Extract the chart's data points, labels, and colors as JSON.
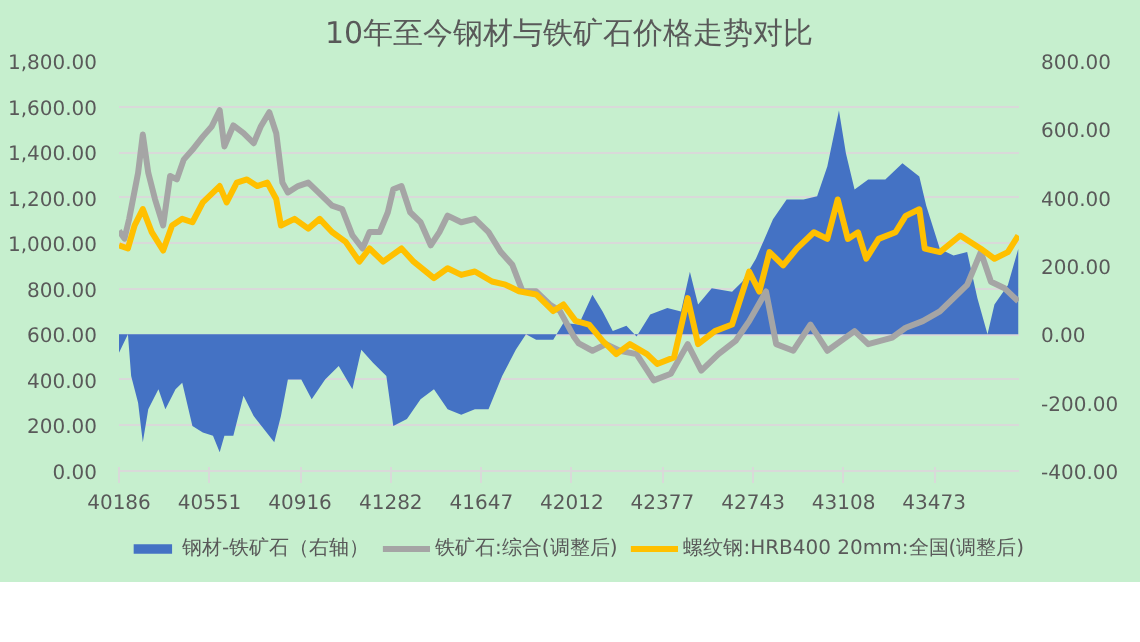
{
  "chart_data": {
    "type": "line",
    "title": "10年至今钢材与铁矿石价格走势对比",
    "xlim": [
      40186,
      43815
    ],
    "xticks": [
      40186,
      40551,
      40916,
      41282,
      41647,
      42012,
      42377,
      42743,
      43108,
      43473
    ],
    "ylim": [
      0,
      1800
    ],
    "yticks": [
      {
        "value": 0,
        "label": "0.00"
      },
      {
        "value": 200,
        "label": "200.00"
      },
      {
        "value": 400,
        "label": "400.00"
      },
      {
        "value": 600,
        "label": "600.00"
      },
      {
        "value": 800,
        "label": "800.00"
      },
      {
        "value": 1000,
        "label": "1,000.00"
      },
      {
        "value": 1200,
        "label": "1,200.00"
      },
      {
        "value": 1400,
        "label": "1,400.00"
      },
      {
        "value": 1600,
        "label": "1,600.00"
      },
      {
        "value": 1800,
        "label": "1,800.00"
      }
    ],
    "y2lim": [
      -400,
      800
    ],
    "y2ticks": [
      {
        "value": -400,
        "label": "-400.00"
      },
      {
        "value": -200,
        "label": "-200.00"
      },
      {
        "value": 0,
        "label": "0.00"
      },
      {
        "value": 200,
        "label": "200.00"
      },
      {
        "value": 400,
        "label": "400.00"
      },
      {
        "value": 600,
        "label": "600.00"
      },
      {
        "value": 800,
        "label": "800.00"
      }
    ],
    "grid": "y",
    "legend": "bottom",
    "series": [
      {
        "name": "钢材-铁矿石（右轴）",
        "type": "area",
        "axis": "y2",
        "color": "#4472c4",
        "x": [
          40186,
          40222,
          40235,
          40263,
          40282,
          40304,
          40345,
          40373,
          40414,
          40441,
          40482,
          40524,
          40565,
          40592,
          40611,
          40647,
          40688,
          40729,
          40770,
          40812,
          40839,
          40867,
          40921,
          40963,
          41017,
          41072,
          41127,
          41163,
          41210,
          41264,
          41292,
          41347,
          41402,
          41456,
          41511,
          41566,
          41621,
          41676,
          41731,
          41786,
          41827,
          41868,
          41937,
          41978,
          42040,
          42095,
          42136,
          42177,
          42232,
          42273,
          42328,
          42397,
          42452,
          42488,
          42521,
          42576,
          42658,
          42699,
          42754,
          42823,
          42878,
          42946,
          43001,
          43042,
          43089,
          43117,
          43152,
          43207,
          43276,
          43345,
          43413,
          43441,
          43496,
          43551,
          43606,
          43647,
          43688,
          43716,
          43770,
          43812
        ],
        "values": [
          -54,
          0,
          -122,
          -200,
          -316,
          -219,
          -161,
          -219,
          -161,
          -142,
          -268,
          -287,
          -297,
          -345,
          -297,
          -297,
          -180,
          -239,
          -277,
          -316,
          -239,
          -132,
          -132,
          -190,
          -132,
          -93,
          -161,
          -45,
          -83,
          -122,
          -268,
          -248,
          -190,
          -161,
          -219,
          -235,
          -219,
          -219,
          -122,
          -45,
          0,
          -16,
          -16,
          33,
          29,
          116,
          67,
          10,
          25,
          -6,
          58,
          77,
          67,
          183,
          87,
          135,
          125,
          154,
          221,
          337,
          395,
          395,
          404,
          491,
          655,
          530,
          424,
          453,
          453,
          501,
          462,
          376,
          250,
          231,
          241,
          106,
          0,
          87,
          144,
          250
        ]
      },
      {
        "name": "铁矿石:综合(调整后)",
        "color": "#a5a5a5",
        "x": [
          40186,
          40208,
          40227,
          40263,
          40282,
          40304,
          40331,
          40364,
          40392,
          40419,
          40447,
          40482,
          40524,
          40559,
          40592,
          40611,
          40647,
          40688,
          40729,
          40757,
          40792,
          40820,
          40845,
          40867,
          40908,
          40949,
          40990,
          41045,
          41086,
          41127,
          41168,
          41196,
          41237,
          41270,
          41292,
          41325,
          41360,
          41402,
          41443,
          41478,
          41511,
          41566,
          41621,
          41676,
          41725,
          41772,
          41813,
          41868,
          41923,
          41964,
          42019,
          42040,
          42095,
          42150,
          42205,
          42273,
          42342,
          42411,
          42479,
          42534,
          42603,
          42672,
          42727,
          42795,
          42836,
          42905,
          42974,
          43042,
          43152,
          43207,
          43304,
          43358,
          43427,
          43496,
          43551,
          43606,
          43661,
          43702,
          43757,
          43812
        ],
        "values": [
          1055,
          1020,
          1107,
          1309,
          1477,
          1309,
          1194,
          1078,
          1295,
          1280,
          1367,
          1410,
          1468,
          1511,
          1584,
          1425,
          1517,
          1483,
          1439,
          1511,
          1575,
          1483,
          1266,
          1223,
          1251,
          1266,
          1223,
          1165,
          1150,
          1035,
          977,
          1049,
          1049,
          1136,
          1237,
          1251,
          1136,
          1092,
          991,
          1049,
          1121,
          1092,
          1107,
          1049,
          962,
          905,
          789,
          789,
          731,
          702,
          592,
          560,
          528,
          557,
          528,
          513,
          398,
          427,
          557,
          441,
          513,
          571,
          658,
          788,
          557,
          528,
          643,
          528,
          614,
          557,
          586,
          629,
          658,
          701,
          759,
          817,
          961,
          831,
          802,
          745
        ]
      },
      {
        "name": "螺纹钢:HRB400 20mm:全国(调整后)",
        "color": "#ffc000",
        "x": [
          40186,
          40222,
          40249,
          40282,
          40318,
          40364,
          40400,
          40441,
          40482,
          40524,
          40592,
          40620,
          40661,
          40702,
          40743,
          40784,
          40820,
          40839,
          40894,
          40949,
          40995,
          41045,
          41100,
          41155,
          41196,
          41251,
          41325,
          41374,
          41456,
          41511,
          41566,
          41621,
          41690,
          41744,
          41799,
          41868,
          41937,
          41978,
          42027,
          42081,
          42136,
          42191,
          42246,
          42315,
          42356,
          42424,
          42479,
          42521,
          42589,
          42658,
          42727,
          42768,
          42809,
          42864,
          42919,
          42988,
          43042,
          43084,
          43125,
          43166,
          43199,
          43249,
          43317,
          43358,
          43413,
          43435,
          43496,
          43578,
          43661,
          43716,
          43770,
          43812
        ],
        "values": [
          991,
          977,
          1078,
          1150,
          1049,
          968,
          1078,
          1107,
          1092,
          1179,
          1251,
          1179,
          1266,
          1280,
          1251,
          1266,
          1194,
          1078,
          1107,
          1064,
          1107,
          1049,
          1006,
          919,
          977,
          919,
          977,
          919,
          847,
          890,
          861,
          876,
          832,
          818,
          789,
          775,
          702,
          731,
          659,
          643,
          571,
          513,
          557,
          513,
          470,
          499,
          759,
          557,
          614,
          643,
          875,
          788,
          961,
          903,
          976,
          1048,
          1019,
          1192,
          1019,
          1048,
          932,
          1019,
          1048,
          1120,
          1149,
          976,
          961,
          1034,
          976,
          932,
          961,
          1034
        ]
      }
    ]
  }
}
